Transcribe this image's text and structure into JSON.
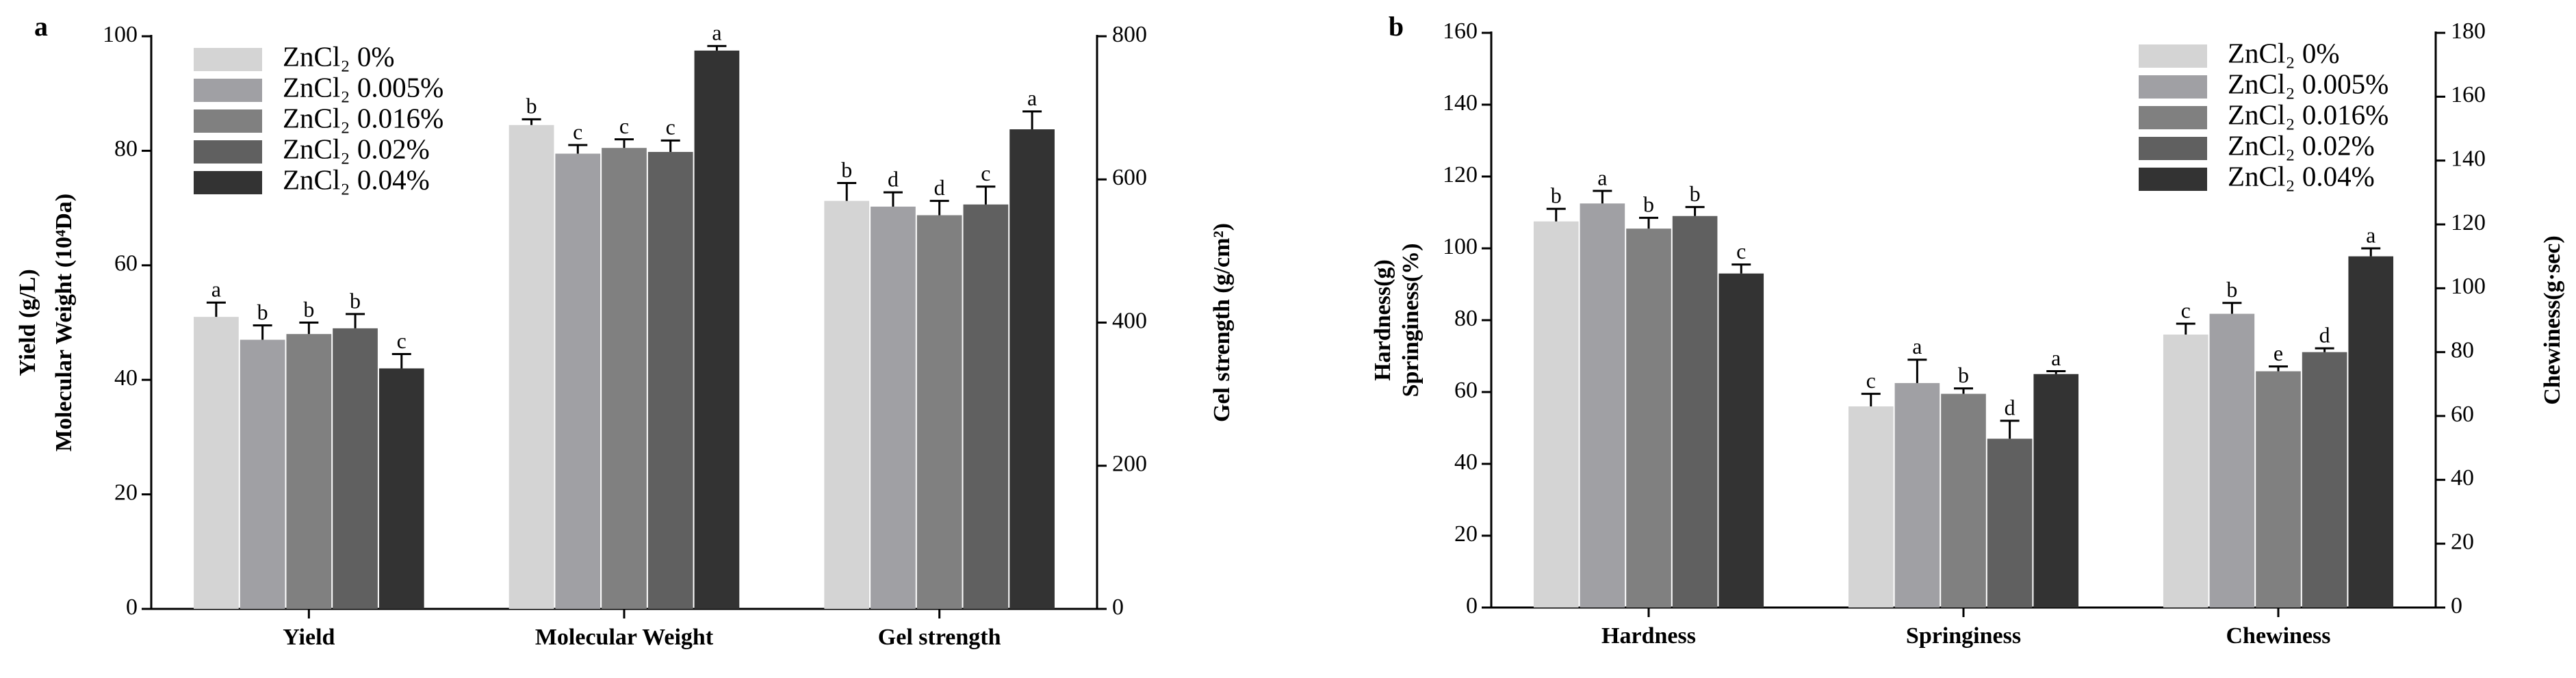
{
  "chart_data": [
    {
      "type": "bar",
      "panel": "a",
      "ylabel": [
        "Yield (g/L)",
        "Molecular Weight (10⁴Da)"
      ],
      "y2label": "Gel strength (g/cm²)",
      "categories": [
        "Yield",
        "Molecular Weight",
        "Gel strength"
      ],
      "category_axes": [
        "y",
        "y",
        "y2"
      ],
      "ylim": [
        0,
        100
      ],
      "yticks": [
        0,
        20,
        40,
        60,
        80,
        100
      ],
      "y2lim": [
        0,
        800
      ],
      "y2ticks": [
        0,
        200,
        400,
        600,
        800
      ],
      "legend": "upper left",
      "series": [
        {
          "name": "ZnCl₂ 0%",
          "color": "#d4d4d4",
          "values": [
            51,
            84.5,
            570
          ],
          "errors": [
            2.5,
            1,
            25
          ],
          "labels": [
            "a",
            "b",
            "b"
          ]
        },
        {
          "name": "ZnCl₂ 0.005%",
          "color": "#a0a0a4",
          "values": [
            47,
            79.5,
            562
          ],
          "errors": [
            2.5,
            1.5,
            20
          ],
          "labels": [
            "b",
            "c",
            "d"
          ]
        },
        {
          "name": "ZnCl₂ 0.016%",
          "color": "#808080",
          "values": [
            48,
            80.5,
            550
          ],
          "errors": [
            2,
            1.5,
            20
          ],
          "labels": [
            "b",
            "c",
            "d"
          ]
        },
        {
          "name": "ZnCl₂ 0.02%",
          "color": "#606060",
          "values": [
            49,
            79.8,
            565
          ],
          "errors": [
            2.5,
            2,
            25
          ],
          "labels": [
            "b",
            "c",
            "c"
          ]
        },
        {
          "name": "ZnCl₂ 0.04%",
          "color": "#333333",
          "values": [
            42,
            97.5,
            670
          ],
          "errors": [
            2.5,
            0.8,
            25
          ],
          "labels": [
            "c",
            "a",
            "a"
          ]
        }
      ]
    },
    {
      "type": "bar",
      "panel": "b",
      "ylabel": [
        "Hardness(g)",
        "Springiness(%)"
      ],
      "y2label": "Chewiness(g·sec)",
      "categories": [
        "Hardness",
        "Springiness",
        "Chewiness"
      ],
      "category_axes": [
        "y",
        "y",
        "y2"
      ],
      "ylim": [
        0,
        160
      ],
      "yticks": [
        0,
        20,
        40,
        60,
        80,
        100,
        120,
        140,
        160
      ],
      "y2lim": [
        0,
        180
      ],
      "y2ticks": [
        0,
        20,
        40,
        60,
        80,
        100,
        120,
        140,
        160,
        180
      ],
      "legend": "upper right",
      "series": [
        {
          "name": "ZnCl₂ 0%",
          "color": "#d4d4d4",
          "values": [
            107.5,
            56,
            85.5
          ],
          "errors": [
            3.5,
            3.5,
            3.4
          ],
          "labels": [
            "b",
            "c",
            "c"
          ]
        },
        {
          "name": "ZnCl₂ 0.005%",
          "color": "#a0a0a4",
          "values": [
            112.5,
            62.5,
            92
          ],
          "errors": [
            3.5,
            6.5,
            3.4
          ],
          "labels": [
            "a",
            "a",
            "b"
          ]
        },
        {
          "name": "ZnCl₂ 0.016%",
          "color": "#808080",
          "values": [
            105.5,
            59.5,
            74
          ],
          "errors": [
            3,
            1.5,
            1.5
          ],
          "labels": [
            "b",
            "b",
            "e"
          ]
        },
        {
          "name": "ZnCl₂ 0.02%",
          "color": "#606060",
          "values": [
            109,
            47,
            80
          ],
          "errors": [
            2.5,
            5,
            1.2
          ],
          "labels": [
            "b",
            "d",
            "d"
          ]
        },
        {
          "name": "ZnCl₂ 0.04%",
          "color": "#333333",
          "values": [
            93,
            65,
            110
          ],
          "errors": [
            2.5,
            0.8,
            2.5
          ],
          "labels": [
            "c",
            "a",
            "a"
          ]
        }
      ]
    }
  ]
}
